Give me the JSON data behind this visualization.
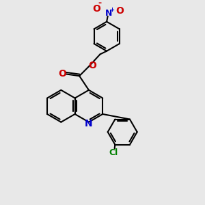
{
  "bg_color": "#e8e8e8",
  "bond_color": "#000000",
  "N_color": "#0000cc",
  "O_color": "#cc0000",
  "Cl_color": "#008000",
  "line_width": 1.5,
  "font_size": 8,
  "figsize": [
    3.0,
    3.0
  ],
  "dpi": 100,
  "xlim": [
    0,
    10
  ],
  "ylim": [
    0,
    10
  ]
}
